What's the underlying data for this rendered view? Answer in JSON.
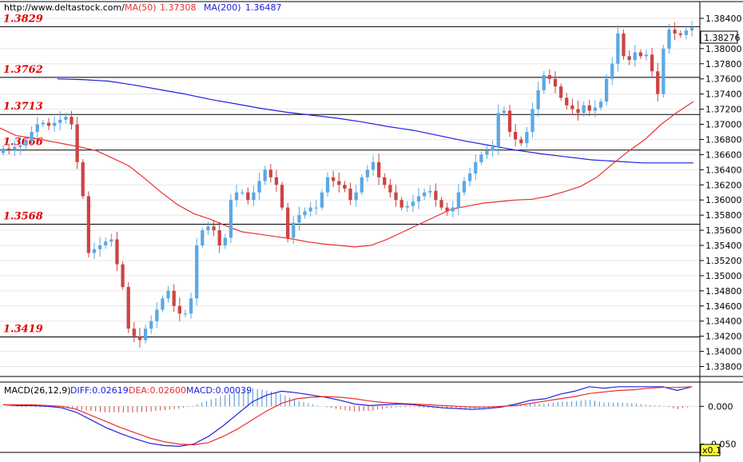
{
  "header": {
    "url": "http://www.deltastock.com/",
    "ma50_label": "MA(50)",
    "ma50_value": "1.37308",
    "ma200_label": "MA(200)",
    "ma200_value": "1.36487"
  },
  "macd_header": {
    "title": "MACD(26,12,9)",
    "diff": "DIFF:0.02619",
    "dea": "DEA:0.02600",
    "macd": "MACD:0.00039"
  },
  "colors": {
    "bull": "#5aa9e6",
    "bear": "#cc4444",
    "ma50": "#e83030",
    "ma200": "#2020e0",
    "level_text": "#e00000",
    "grid": "#e6e6e6",
    "hist": "#4a8fd0"
  },
  "chart_data": [
    {
      "type": "candlestick",
      "title": "",
      "xlabel": "",
      "ylabel": "",
      "ylim": [
        1.337,
        1.386
      ],
      "y_ticks": [
        "1.38400",
        "1.38000",
        "1.37800",
        "1.37600",
        "1.37400",
        "1.37200",
        "1.37000",
        "1.36800",
        "1.36600",
        "1.36400",
        "1.36200",
        "1.36000",
        "1.35800",
        "1.35600",
        "1.35400",
        "1.35200",
        "1.35000",
        "1.34800",
        "1.34600",
        "1.34400",
        "1.34200",
        "1.34000",
        "1.33800"
      ],
      "last_price": "1.38276",
      "levels": [
        {
          "label": "1.3829",
          "value": 1.3829
        },
        {
          "label": "1.3762",
          "value": 1.3762
        },
        {
          "label": "1.3713",
          "value": 1.3713
        },
        {
          "label": "1.3666",
          "value": 1.3666
        },
        {
          "label": "1.3568",
          "value": 1.3568
        },
        {
          "label": "1.3419",
          "value": 1.3419
        }
      ],
      "closes": [
        1.3668,
        1.3666,
        1.367,
        1.3672,
        1.3678,
        1.369,
        1.37,
        1.3702,
        1.3698,
        1.3702,
        1.3706,
        1.371,
        1.37,
        1.365,
        1.3605,
        1.353,
        1.3535,
        1.354,
        1.3545,
        1.3548,
        1.3515,
        1.3485,
        1.343,
        1.342,
        1.3415,
        1.343,
        1.344,
        1.3455,
        1.347,
        1.348,
        1.346,
        1.345,
        1.345,
        1.347,
        1.354,
        1.356,
        1.3565,
        1.356,
        1.354,
        1.355,
        1.36,
        1.361,
        1.361,
        1.36,
        1.361,
        1.3625,
        1.364,
        1.363,
        1.362,
        1.359,
        1.355,
        1.357,
        1.358,
        1.3585,
        1.359,
        1.359,
        1.361,
        1.363,
        1.3625,
        1.362,
        1.3615,
        1.36,
        1.361,
        1.363,
        1.364,
        1.365,
        1.363,
        1.362,
        1.361,
        1.36,
        1.359,
        1.3592,
        1.3598,
        1.3605,
        1.361,
        1.3612,
        1.36,
        1.359,
        1.3585,
        1.359,
        1.361,
        1.3625,
        1.3635,
        1.365,
        1.366,
        1.3665,
        1.367,
        1.3715,
        1.3718,
        1.369,
        1.368,
        1.3675,
        1.369,
        1.372,
        1.3745,
        1.3765,
        1.376,
        1.375,
        1.3735,
        1.3725,
        1.372,
        1.3715,
        1.3725,
        1.3718,
        1.3722,
        1.373,
        1.376,
        1.378,
        1.382,
        1.379,
        1.3785,
        1.3795,
        1.379,
        1.3792,
        1.377,
        1.374,
        1.38,
        1.3825,
        1.382,
        1.3818,
        1.3824,
        1.3828
      ],
      "ma50": [
        1.3695,
        1.3685,
        1.3682,
        1.3678,
        1.3674,
        1.367,
        1.3665,
        1.3655,
        1.3645,
        1.3628,
        1.361,
        1.3594,
        1.3582,
        1.3575,
        1.3566,
        1.3558,
        1.3555,
        1.3552,
        1.3549,
        1.3545,
        1.3542,
        1.354,
        1.3538,
        1.354,
        1.3548,
        1.3558,
        1.3568,
        1.3578,
        1.3588,
        1.3592,
        1.3596,
        1.3598,
        1.36,
        1.3601,
        1.3605,
        1.3611,
        1.3618,
        1.363,
        1.3648,
        1.3665,
        1.368,
        1.37,
        1.3716,
        1.373
      ],
      "ma200": [
        1.376,
        1.3759,
        1.3757,
        1.3752,
        1.3746,
        1.374,
        1.3733,
        1.3727,
        1.3721,
        1.3716,
        1.3712,
        1.3708,
        1.3703,
        1.3697,
        1.3692,
        1.3685,
        1.3678,
        1.3672,
        1.3666,
        1.3661,
        1.3657,
        1.3653,
        1.3651,
        1.3649,
        1.3649,
        1.3649
      ]
    },
    {
      "type": "line",
      "title": "MACD(26,12,9)",
      "y_ticks": [
        "0.000",
        "-0.050"
      ],
      "scale_badge": "x0.1",
      "series": [
        {
          "name": "DIFF",
          "values": [
            0.002,
            0.001,
            0.001,
            0.0,
            -0.002,
            -0.008,
            -0.018,
            -0.028,
            -0.036,
            -0.043,
            -0.049,
            -0.052,
            -0.053,
            -0.05,
            -0.04,
            -0.026,
            -0.01,
            0.006,
            0.015,
            0.02,
            0.018,
            0.015,
            0.012,
            0.008,
            0.003,
            0.001,
            0.002,
            0.003,
            0.002,
            0.0,
            -0.002,
            -0.003,
            -0.004,
            -0.003,
            -0.001,
            0.003,
            0.008,
            0.01,
            0.016,
            0.02,
            0.026,
            0.024,
            0.026,
            0.026,
            0.026,
            0.026,
            0.021,
            0.026
          ]
        },
        {
          "name": "DEA",
          "values": [
            0.002,
            0.002,
            0.002,
            0.001,
            0.0,
            -0.004,
            -0.012,
            -0.02,
            -0.028,
            -0.035,
            -0.042,
            -0.047,
            -0.05,
            -0.051,
            -0.048,
            -0.04,
            -0.03,
            -0.018,
            -0.006,
            0.004,
            0.01,
            0.012,
            0.013,
            0.012,
            0.01,
            0.007,
            0.005,
            0.004,
            0.003,
            0.002,
            0.001,
            0.0,
            -0.001,
            -0.001,
            0.0,
            0.001,
            0.004,
            0.007,
            0.01,
            0.013,
            0.017,
            0.019,
            0.021,
            0.022,
            0.024,
            0.025,
            0.025,
            0.026
          ]
        }
      ],
      "histogram": [
        0.0,
        -0.001,
        -0.001,
        -0.001,
        -0.002,
        -0.004,
        -0.006,
        -0.008,
        -0.008,
        -0.008,
        -0.007,
        -0.005,
        -0.003,
        0.001,
        0.008,
        0.014,
        0.02,
        0.024,
        0.021,
        0.016,
        0.008,
        0.003,
        -0.001,
        -0.004,
        -0.007,
        -0.006,
        -0.003,
        -0.001,
        -0.001,
        -0.002,
        -0.003,
        -0.003,
        -0.003,
        -0.002,
        -0.001,
        0.002,
        0.004,
        0.003,
        0.006,
        0.007,
        0.009,
        0.005,
        0.005,
        0.004,
        0.002,
        0.001,
        -0.004,
        0.0
      ]
    }
  ]
}
